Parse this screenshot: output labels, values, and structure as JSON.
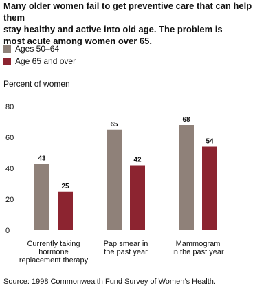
{
  "title_lines": [
    "Many older women fail to get preventive care that can help them",
    "stay healthy and active into old age. The problem is",
    "most acute among women over 65."
  ],
  "legend": [
    {
      "label": "Ages 50–64",
      "color": "#8f8179"
    },
    {
      "label": "Age 65 and over",
      "color": "#8c2430"
    }
  ],
  "source": "Source: 1998 Commonwealth Fund Survey of Women’s Health.",
  "chart_data": {
    "type": "bar",
    "ylabel": "Percent of women",
    "ylim": [
      0,
      80
    ],
    "yticks": [
      0,
      20,
      40,
      60,
      80
    ],
    "grid": false,
    "categories": [
      [
        "Currently taking",
        "hormone",
        "replacement therapy"
      ],
      [
        "Pap smear in",
        "the past year"
      ],
      [
        "Mammogram",
        "in the past year"
      ]
    ],
    "series": [
      {
        "name": "Ages 50–64",
        "color": "#8f8179",
        "values": [
          43,
          65,
          68
        ]
      },
      {
        "name": "Age 65 and over",
        "color": "#8c2430",
        "values": [
          25,
          42,
          54
        ]
      }
    ]
  }
}
